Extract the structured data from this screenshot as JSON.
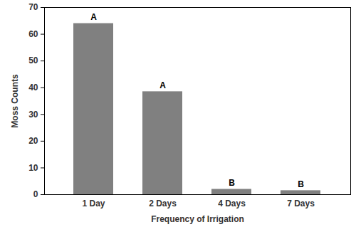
{
  "chart_data": {
    "type": "bar",
    "categories": [
      "1 Day",
      "2 Days",
      "4 Days",
      "7 Days"
    ],
    "values": [
      64,
      38.5,
      2,
      1.5
    ],
    "annotations": [
      "A",
      "A",
      "B",
      "B"
    ],
    "color": "#808080",
    "x_label": "Frequency of Irrigation",
    "y_label": "Moss Counts",
    "ylim": [
      0,
      70
    ],
    "yticks": [
      0,
      10,
      20,
      30,
      40,
      50,
      60,
      70
    ],
    "grid": false
  }
}
